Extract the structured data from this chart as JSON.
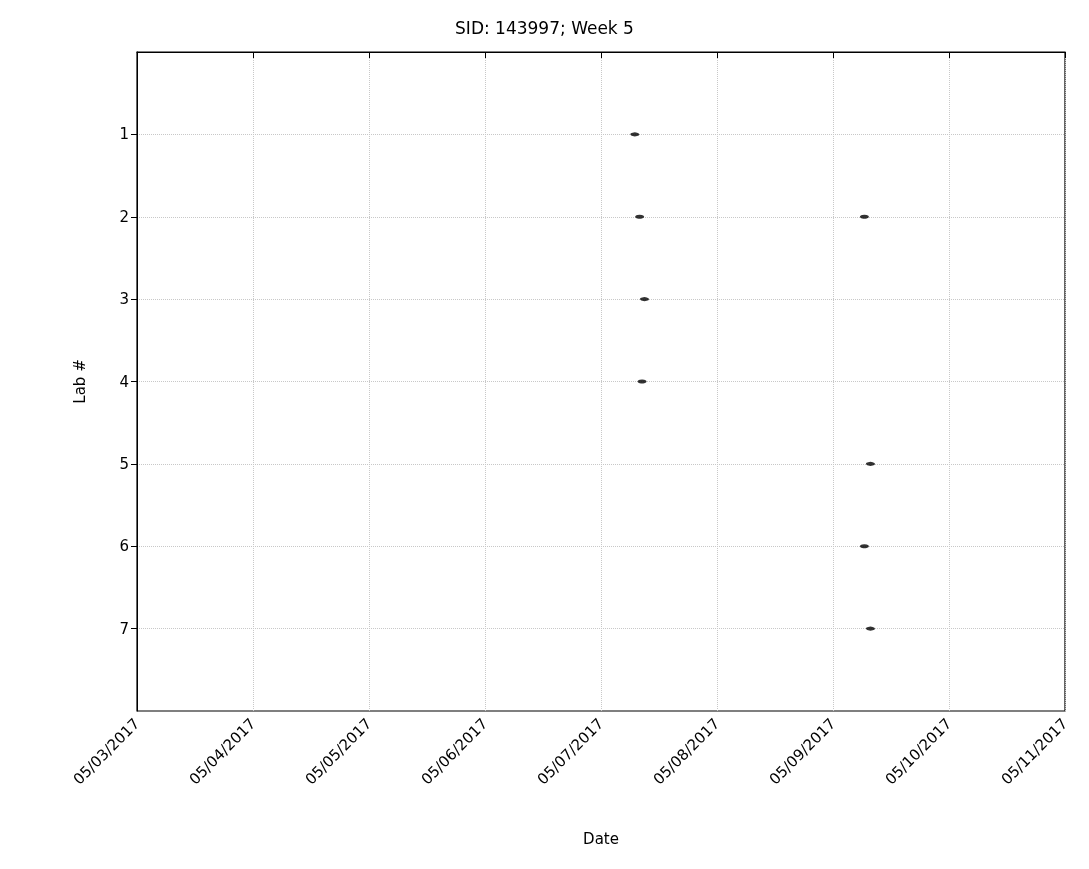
{
  "chart_data": {
    "type": "scatter",
    "title": "SID: 143997; Week 5",
    "xlabel": "Date",
    "ylabel": "Lab #",
    "series": [
      {
        "color": "#000000",
        "x": [
          "2017-05-07T07:00",
          "2017-05-07T08:00",
          "2017-05-07T09:00",
          "2017-05-07T08:30",
          "2017-05-09T06:30",
          "2017-05-09T07:45",
          "2017-05-09T06:30",
          "2017-05-09T07:45"
        ],
        "values": [
          1,
          2,
          3,
          4,
          2,
          5,
          6,
          7
        ]
      }
    ],
    "xlim": [
      "2017-05-03",
      "2017-05-11"
    ],
    "xticks": [
      {
        "value": "2017-05-03",
        "label": "05/03/2017"
      },
      {
        "value": "2017-05-04",
        "label": "05/04/2017"
      },
      {
        "value": "2017-05-05",
        "label": "05/05/2017"
      },
      {
        "value": "2017-05-06",
        "label": "05/06/2017"
      },
      {
        "value": "2017-05-07",
        "label": "05/07/2017"
      },
      {
        "value": "2017-05-08",
        "label": "05/08/2017"
      },
      {
        "value": "2017-05-09",
        "label": "05/09/2017"
      },
      {
        "value": "2017-05-10",
        "label": "05/10/2017"
      },
      {
        "value": "2017-05-11",
        "label": "05/11/2017"
      }
    ],
    "ylim": [
      8,
      0
    ],
    "yticks": [
      1,
      2,
      3,
      4,
      5,
      6,
      7
    ],
    "grid": true
  }
}
